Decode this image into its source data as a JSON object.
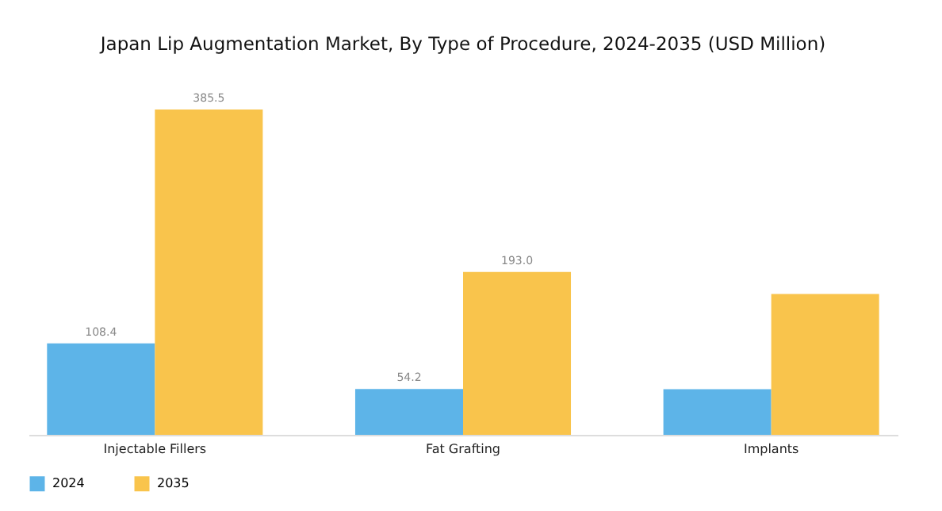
{
  "chart_data": {
    "type": "bar",
    "title": "Japan Lip Augmentation Market, By Type of Procedure, 2024-2035 (USD Million)",
    "categories": [
      "Injectable Fillers",
      "Fat Grafting",
      "Implants"
    ],
    "series": [
      {
        "name": "2024",
        "color": "#5db4e8",
        "values": [
          108.4,
          54.2,
          54
        ],
        "value_labels": [
          "108.4",
          "54.2",
          null
        ]
      },
      {
        "name": "2035",
        "color": "#f9c44c",
        "values": [
          385.5,
          193.0,
          167
        ],
        "value_labels": [
          "385.5",
          "193.0",
          null
        ]
      }
    ],
    "legend": "bottom"
  }
}
